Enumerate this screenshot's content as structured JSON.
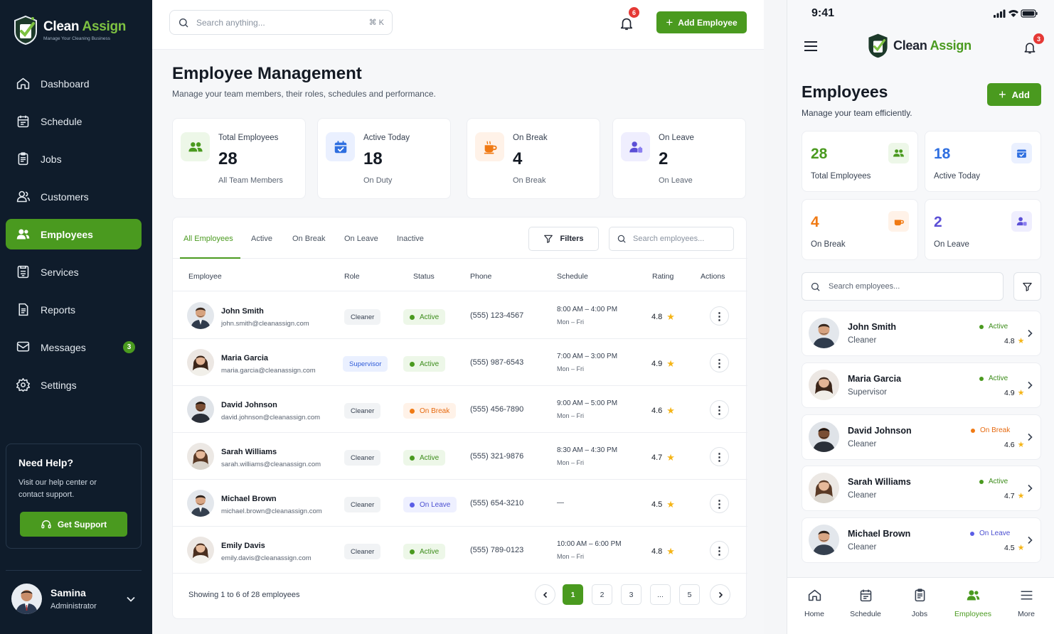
{
  "brand": {
    "name_a": "Clean",
    "name_b": " Assign",
    "tagline": "Manage Your Cleaning Business"
  },
  "sidebar": {
    "items": [
      {
        "label": "Dashboard"
      },
      {
        "label": "Schedule"
      },
      {
        "label": "Jobs"
      },
      {
        "label": "Customers"
      },
      {
        "label": "Employees"
      },
      {
        "label": "Services"
      },
      {
        "label": "Reports"
      },
      {
        "label": "Messages",
        "badge": "3"
      },
      {
        "label": "Settings"
      }
    ],
    "help": {
      "title": "Need Help?",
      "text": "Visit our help center or contact support.",
      "button": "Get Support"
    },
    "user": {
      "name": "Samina",
      "role": "Administrator"
    }
  },
  "topbar": {
    "search_placeholder": "Search anything...",
    "shortcut": "⌘ K",
    "notif_count": "6",
    "add_button": "Add Employee"
  },
  "page": {
    "title": "Employee Management",
    "subtitle": "Manage your team members, their roles, schedules and performance."
  },
  "stats": [
    {
      "label": "Total Employees",
      "value": "28",
      "sub": "All Team Members",
      "icon": "users-icon"
    },
    {
      "label": "Active Today",
      "value": "18",
      "sub": "On Duty",
      "icon": "calendar-check-icon"
    },
    {
      "label": "On Break",
      "value": "4",
      "sub": "On Break",
      "icon": "coffee-icon"
    },
    {
      "label": "On Leave",
      "value": "2",
      "sub": "On Leave",
      "icon": "user-leave-icon"
    }
  ],
  "tabs": [
    "All Employees",
    "Active",
    "On Break",
    "On Leave",
    "Inactive"
  ],
  "table": {
    "filters_label": "Filters",
    "search_placeholder": "Search employees...",
    "columns": [
      "Employee",
      "Role",
      "Status",
      "Phone",
      "Schedule",
      "Rating",
      "Actions"
    ],
    "rows": [
      {
        "name": "John Smith",
        "email": "john.smith@cleanassign.com",
        "role": "Cleaner",
        "status": "Active",
        "phone": "(555) 123-4567",
        "sched": "8:00 AM – 4:00 PM",
        "days": "Mon – Fri",
        "rating": "4.8"
      },
      {
        "name": "Maria Garcia",
        "email": "maria.garcia@cleanassign.com",
        "role": "Supervisor",
        "status": "Active",
        "phone": "(555) 987-6543",
        "sched": "7:00 AM – 3:00 PM",
        "days": "Mon – Fri",
        "rating": "4.9"
      },
      {
        "name": "David Johnson",
        "email": "david.johnson@cleanassign.com",
        "role": "Cleaner",
        "status": "On Break",
        "phone": "(555) 456-7890",
        "sched": "9:00 AM – 5:00 PM",
        "days": "Mon – Fri",
        "rating": "4.6"
      },
      {
        "name": "Sarah Williams",
        "email": "sarah.williams@cleanassign.com",
        "role": "Cleaner",
        "status": "Active",
        "phone": "(555) 321-9876",
        "sched": "8:30 AM – 4:30 PM",
        "days": "Mon – Fri",
        "rating": "4.7"
      },
      {
        "name": "Michael Brown",
        "email": "michael.brown@cleanassign.com",
        "role": "Cleaner",
        "status": "On Leave",
        "phone": "(555) 654-3210",
        "sched": "—",
        "days": "",
        "rating": "4.5"
      },
      {
        "name": "Emily Davis",
        "email": "emily.davis@cleanassign.com",
        "role": "Cleaner",
        "status": "Active",
        "phone": "(555) 789-0123",
        "sched": "10:00 AM – 6:00 PM",
        "days": "Mon – Fri",
        "rating": "4.8"
      }
    ],
    "footer": "Showing 1 to 6 of 28 employees",
    "pages": [
      "1",
      "2",
      "3",
      "...",
      "5"
    ]
  },
  "mobile": {
    "time": "9:41",
    "notif_count": "3",
    "title": "Employees",
    "subtitle": "Manage your team efficiently.",
    "add_button": "Add",
    "stats": [
      {
        "value": "28",
        "label": "Total Employees"
      },
      {
        "value": "18",
        "label": "Active Today"
      },
      {
        "value": "4",
        "label": "On Break"
      },
      {
        "value": "2",
        "label": "On Leave"
      }
    ],
    "search_placeholder": "Search employees...",
    "cards": [
      {
        "name": "John Smith",
        "role": "Cleaner",
        "status": "Active",
        "rating": "4.8"
      },
      {
        "name": "Maria Garcia",
        "role": "Supervisor",
        "status": "Active",
        "rating": "4.9"
      },
      {
        "name": "David Johnson",
        "role": "Cleaner",
        "status": "On Break",
        "rating": "4.6"
      },
      {
        "name": "Sarah Williams",
        "role": "Cleaner",
        "status": "Active",
        "rating": "4.7"
      },
      {
        "name": "Michael Brown",
        "role": "Cleaner",
        "status": "On Leave",
        "rating": "4.5"
      }
    ],
    "tabbar": [
      "Home",
      "Schedule",
      "Jobs",
      "Employees",
      "More"
    ]
  },
  "colors": {
    "accent": "#4a9a1f",
    "sidebar": "#0f1c2b",
    "break": "#f07a14",
    "leave": "#5b5ee6",
    "badge": "#e53935"
  }
}
